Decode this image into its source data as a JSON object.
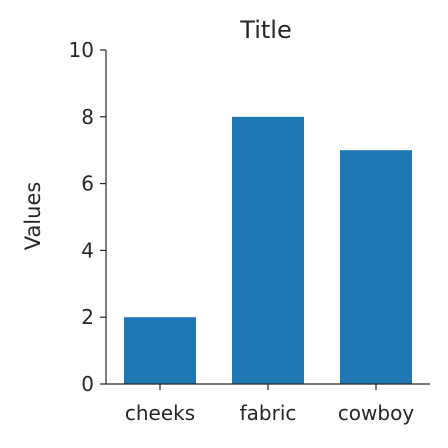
{
  "chart_data": {
    "type": "bar",
    "title": "Title",
    "xlabel": "",
    "ylabel": "Values",
    "categories": [
      "cheeks",
      "fabric",
      "cowboy"
    ],
    "values": [
      2,
      8,
      7
    ],
    "ylim": [
      0,
      10
    ],
    "yticks": [
      0,
      2,
      4,
      6,
      8,
      10
    ],
    "bar_color": "#1f77b4",
    "grid": false,
    "legend": "none"
  }
}
